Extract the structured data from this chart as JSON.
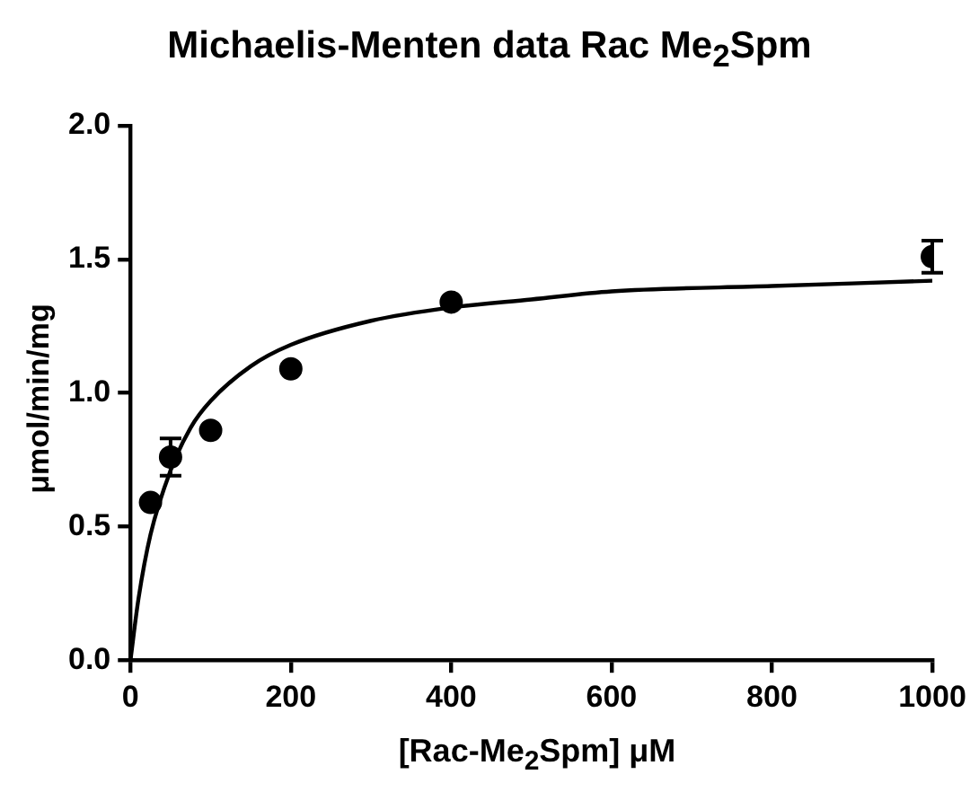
{
  "chart_data": {
    "type": "scatter",
    "title": "Michaelis-Menten data Rac Me$_{2}$Spm",
    "xlabel": "[Rac-Me$_{2}$Spm] μM",
    "ylabel": "μmol/min/mg",
    "xlim": [
      0,
      1000
    ],
    "xticks": [
      0,
      200,
      400,
      600,
      800,
      1000
    ],
    "ylim": [
      0,
      2.0
    ],
    "yticks": [
      {
        "value": 0,
        "label": "0.0"
      },
      {
        "value": 0.5,
        "label": "0.5"
      },
      {
        "value": 1,
        "label": "1.0"
      },
      {
        "value": 1.5,
        "label": "1.5"
      },
      {
        "value": 2,
        "label": "2.0"
      }
    ],
    "grid": false,
    "legend": false,
    "marker": "circle",
    "series": [
      {
        "type": "scatter",
        "color": "#000000",
        "x": [
          25,
          50,
          100,
          200,
          400,
          1000
        ],
        "values": [
          0.59,
          0.76,
          0.86,
          1.09,
          1.34,
          1.51
        ],
        "errors": [
          null,
          0.07,
          null,
          null,
          null,
          0.06
        ]
      },
      {
        "type": "line",
        "color": "#000000",
        "marker": "none",
        "line_style": "solid",
        "x": [
          0,
          10,
          25,
          50,
          75,
          100,
          150,
          200,
          300,
          400,
          500,
          600,
          800,
          1000
        ],
        "values": [
          0,
          0.23,
          0.47,
          0.71,
          0.87,
          0.97,
          1.1,
          1.18,
          1.27,
          1.32,
          1.35,
          1.38,
          1.4,
          1.42
        ]
      }
    ]
  }
}
